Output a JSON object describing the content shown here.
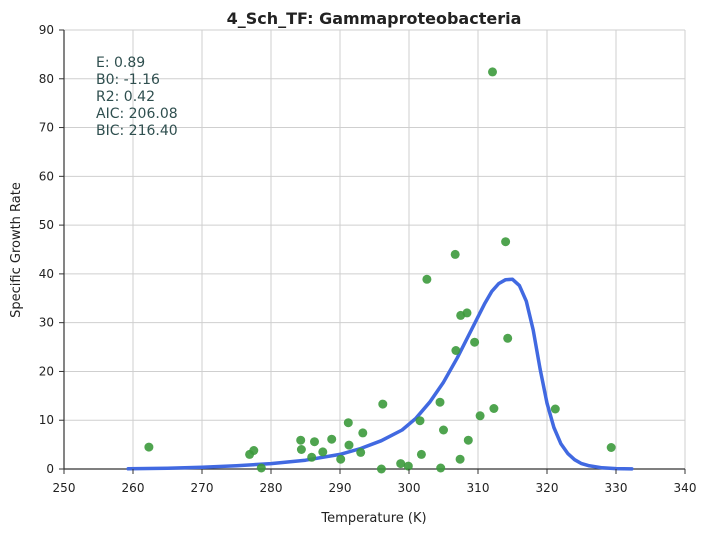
{
  "chart_data": {
    "type": "scatter",
    "title": "4_Sch_TF: Gammaproteobacteria",
    "xlabel": "Temperature (K)",
    "ylabel": "Specific Growth Rate",
    "xlim": [
      250,
      340
    ],
    "ylim": [
      0,
      90
    ],
    "xticks": [
      250,
      260,
      270,
      280,
      290,
      300,
      310,
      320,
      330,
      340
    ],
    "yticks": [
      0,
      10,
      20,
      30,
      40,
      50,
      60,
      70,
      80,
      90
    ],
    "grid": true,
    "colors": {
      "points": "#3c9a3c",
      "curve": "#4169e1",
      "stats": "#2f4f4f"
    },
    "stats": [
      "E:  0.89",
      "B0:  -1.16",
      "R2:  0.42",
      "AIC: 206.08",
      "BIC: 216.40"
    ],
    "series": [
      {
        "kind": "points",
        "x": [
          262.3,
          276.9,
          277.5,
          278.6,
          284.3,
          284.4,
          285.9,
          286.3,
          287.5,
          288.8,
          290.1,
          291.2,
          291.3,
          293.0,
          293.3,
          296.0,
          296.2,
          298.8,
          299.9,
          301.6,
          301.8,
          302.6,
          304.5,
          304.6,
          305.0,
          306.7,
          306.8,
          307.4,
          307.5,
          308.4,
          308.6,
          309.5,
          310.3,
          312.1,
          312.3,
          314.0,
          314.3,
          321.2,
          329.3
        ],
        "y": [
          4.5,
          3.0,
          3.8,
          0.2,
          5.9,
          4.0,
          2.4,
          5.6,
          3.5,
          6.1,
          2.0,
          9.5,
          4.9,
          3.4,
          7.4,
          0.0,
          13.3,
          1.1,
          0.6,
          9.9,
          3.0,
          38.9,
          13.7,
          0.2,
          8.0,
          44.0,
          24.3,
          2.0,
          31.5,
          32.0,
          5.9,
          26.0,
          10.9,
          81.4,
          12.4,
          46.6,
          26.8,
          12.3,
          4.4
        ]
      },
      {
        "kind": "fit-curve",
        "x": [
          259.3,
          265,
          270,
          275,
          280,
          285,
          290,
          293,
          296,
          299,
          301,
          303,
          305,
          307,
          309,
          311,
          312,
          313,
          314,
          315,
          316,
          317,
          318,
          319,
          320,
          321,
          322,
          323,
          324,
          325,
          326,
          328,
          330,
          332.3
        ],
        "y": [
          0.05,
          0.15,
          0.35,
          0.65,
          1.1,
          1.8,
          3.0,
          4.2,
          5.8,
          8.0,
          10.4,
          13.7,
          17.8,
          22.8,
          28.4,
          34.0,
          36.4,
          38.0,
          38.8,
          38.9,
          37.6,
          34.4,
          28.5,
          20.5,
          13.5,
          8.5,
          5.2,
          3.2,
          1.9,
          1.1,
          0.7,
          0.25,
          0.08,
          0.02
        ]
      }
    ]
  }
}
